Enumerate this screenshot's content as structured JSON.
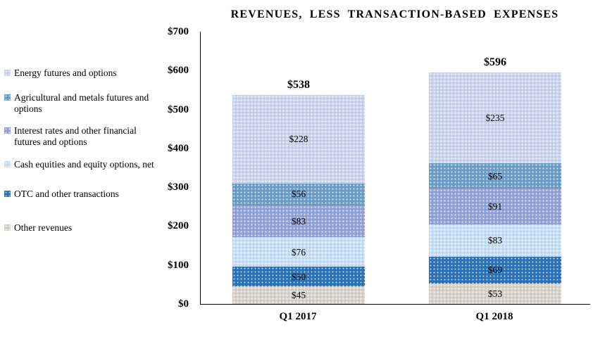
{
  "chart_data": {
    "type": "bar",
    "stacked": true,
    "title": "REVENUES, LESS TRANSACTION-BASED EXPENSES",
    "categories": [
      "Q1 2017",
      "Q1 2018"
    ],
    "series": [
      {
        "name": "Energy futures and options",
        "values": [
          228,
          235
        ],
        "color": "#ccd5ed"
      },
      {
        "name": "Agricultural and metals futures and options",
        "values": [
          56,
          65
        ],
        "color": "#6e9fc8"
      },
      {
        "name": "Interest rates and other financial futures and options",
        "values": [
          83,
          91
        ],
        "color": "#94a3d8"
      },
      {
        "name": "Cash equities and equity options, net",
        "values": [
          76,
          83
        ],
        "color": "#c8e0f6"
      },
      {
        "name": "OTC and other transactions",
        "values": [
          50,
          69
        ],
        "color": "#2d73b9"
      },
      {
        "name": "Other revenues",
        "values": [
          45,
          53
        ],
        "color": "#d8d3ca"
      }
    ],
    "totals": [
      "$538",
      "$596"
    ],
    "value_prefix": "$",
    "y_axis": {
      "min": 0,
      "max": 700,
      "ticks": [
        {
          "label": "$700",
          "value": 700
        },
        {
          "label": "$600",
          "value": 600
        },
        {
          "label": "$500",
          "value": 500
        },
        {
          "label": "$400",
          "value": 400
        },
        {
          "label": "$300",
          "value": 300
        },
        {
          "label": "$200",
          "value": 200
        },
        {
          "label": "$100",
          "value": 100
        },
        {
          "label": "$0",
          "value": 0
        }
      ]
    },
    "legend_position": "left",
    "grid": false,
    "background": "#ffffff",
    "text_color": "#000000"
  }
}
